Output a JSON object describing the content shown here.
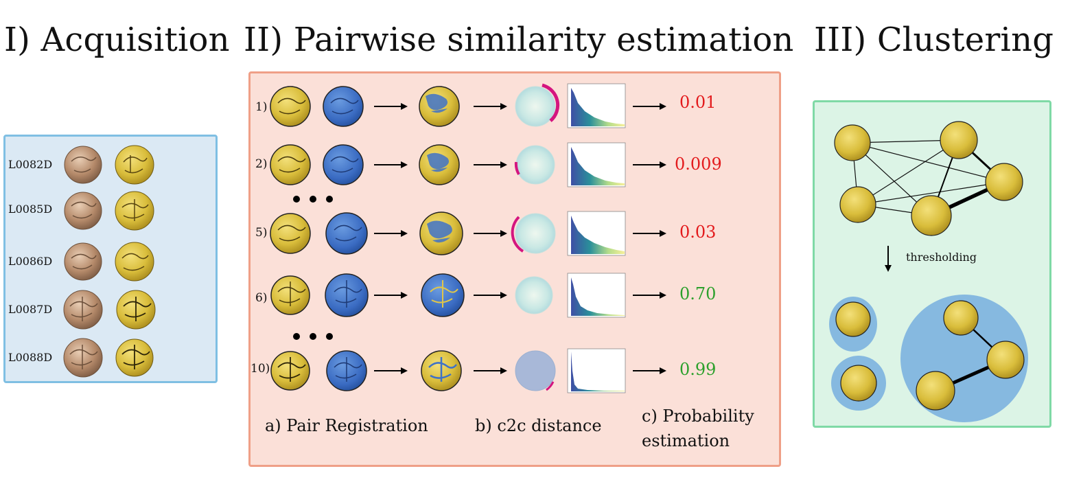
{
  "titles": {
    "acquisition": "I) Acquisition",
    "similarity": "II) Pairwise similarity estimation",
    "clustering": "III) Clustering"
  },
  "acquisition": {
    "coins": [
      "L0082D",
      "L0085D",
      "L0086D",
      "L0087D",
      "L0088D"
    ]
  },
  "similarity": {
    "rows": [
      {
        "label": "1)",
        "probability": "0.01",
        "color": "#e31a1c"
      },
      {
        "label": "2)",
        "probability": "0.009",
        "color": "#e31a1c"
      },
      {
        "label": "5)",
        "probability": "0.03",
        "color": "#e31a1c"
      },
      {
        "label": "6)",
        "probability": "0.70",
        "color": "#2ca02c"
      },
      {
        "label": "10)",
        "probability": "0.99",
        "color": "#2ca02c"
      }
    ],
    "steps": {
      "registration": "a) Pair Registration",
      "distance": "b) c2c distance",
      "probability_line1": "c) Probability",
      "probability_line2": "estimation"
    }
  },
  "clustering": {
    "threshold_label": "thresholding"
  },
  "colors": {
    "acq_fill": "#dbe9f4",
    "acq_border": "#7fbfe3",
    "sim_fill": "#fbe0d8",
    "sim_border": "#ef9f87",
    "clu_fill": "#dcf4e6",
    "clu_border": "#7fd9a6",
    "gold": "#e0c64a",
    "blue": "#3f72c7",
    "cluster": "#86b9e0"
  }
}
